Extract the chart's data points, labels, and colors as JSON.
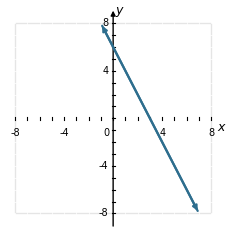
{
  "xlim": [
    -9,
    9
  ],
  "ylim": [
    -9.5,
    9.5
  ],
  "axis_range": 8,
  "xticks": [
    -8,
    -4,
    0,
    4,
    8
  ],
  "yticks": [
    -8,
    -4,
    0,
    4,
    8
  ],
  "xlabel": "x",
  "ylabel": "y",
  "line_color": "#2e6e8e",
  "line_width": 1.6,
  "slope": -2,
  "intercept": 6,
  "x_start": -1.0,
  "x_end": 7.0,
  "background_color": "#ffffff",
  "plot_bg_color": "#f0f0f0",
  "grid_color": "#ffffff",
  "grid_major_color": "#d0d0d0",
  "axis_color": "#000000",
  "tick_fontsize": 7,
  "label_fontsize": 9
}
